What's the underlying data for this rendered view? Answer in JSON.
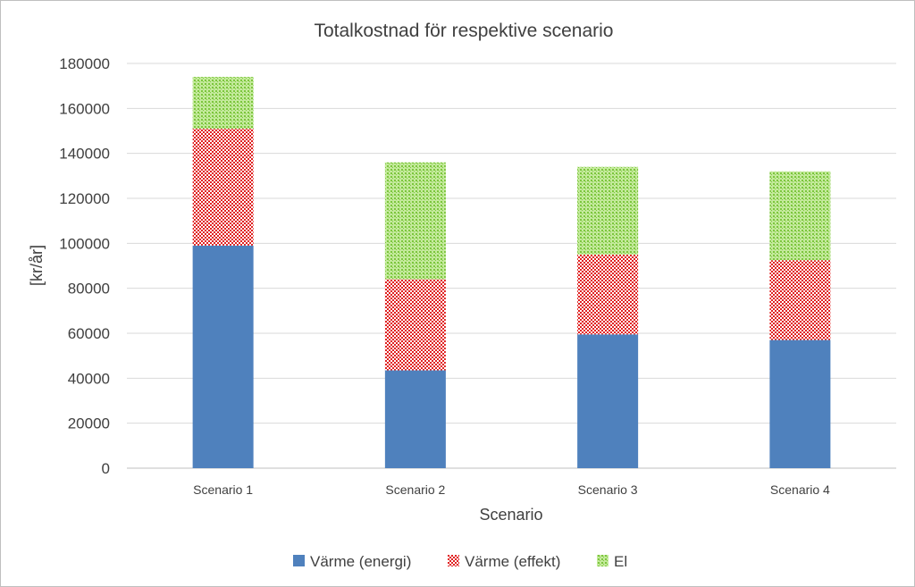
{
  "chart_data": {
    "type": "bar",
    "stacked": true,
    "title": "Totalkostnad för respektive scenario",
    "xlabel": "Scenario",
    "ylabel": "[kr/år]",
    "ylim": [
      0,
      180000
    ],
    "yticks": [
      0,
      20000,
      40000,
      60000,
      80000,
      100000,
      120000,
      140000,
      160000,
      180000
    ],
    "grid": true,
    "legend_position": "bottom",
    "categories": [
      "Scenario 1",
      "Scenario 2",
      "Scenario 3",
      "Scenario 4"
    ],
    "series": [
      {
        "name": "Värme (energi)",
        "values": [
          99000,
          43500,
          59500,
          57000
        ],
        "color": "#4f81bd",
        "pattern": "solid"
      },
      {
        "name": "Värme (effekt)",
        "values": [
          52000,
          40500,
          35500,
          35500
        ],
        "color": "#e02020",
        "pattern": "checker"
      },
      {
        "name": "El",
        "values": [
          23000,
          52000,
          39000,
          39500
        ],
        "color": "#8fd14f",
        "pattern": "dotted"
      }
    ]
  }
}
